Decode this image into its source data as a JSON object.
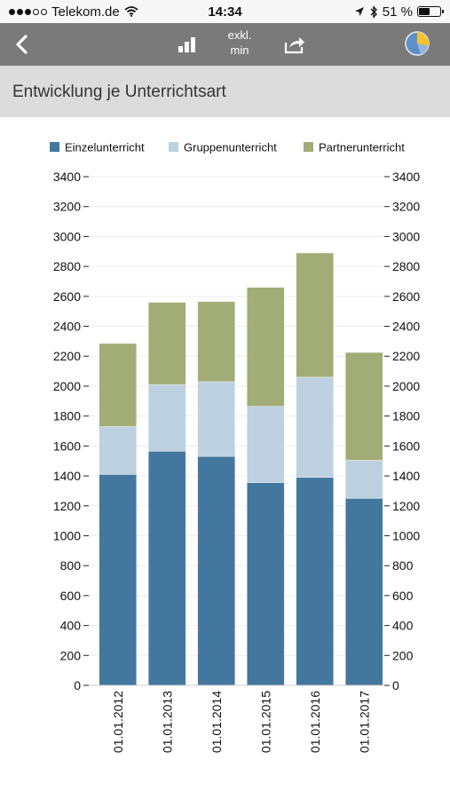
{
  "status_bar": {
    "carrier": "Telekom.de",
    "time": "14:34",
    "battery_text": "51 %",
    "battery_level": 0.51,
    "signal_strength": 3
  },
  "toolbar": {
    "back_icon": "chevron-left-icon",
    "chart_type_icon": "bar-chart-icon",
    "exkl_line1": "exkl.",
    "exkl_line2": "min",
    "share_icon": "share-icon",
    "pie_icon": "pie-chart-icon"
  },
  "page": {
    "title": "Entwicklung je Unterrichtsart"
  },
  "colors": {
    "einzel": "#43779e",
    "gruppen": "#bdd1e0",
    "partner": "#a2ac77",
    "toolbar": "#7a7a7a",
    "title_band": "#dcdcdc"
  },
  "chart_data": {
    "type": "bar",
    "stacked": true,
    "categories": [
      "01.01.2012",
      "01.01.2013",
      "01.01.2014",
      "01.01.2015",
      "01.01.2016",
      "01.01.2017"
    ],
    "series": [
      {
        "name": "Einzelunterricht",
        "values": [
          1410,
          1565,
          1530,
          1355,
          1390,
          1250
        ]
      },
      {
        "name": "Gruppenunterricht",
        "values": [
          320,
          445,
          500,
          510,
          670,
          255
        ]
      },
      {
        "name": "Partnerunterricht",
        "values": [
          555,
          550,
          535,
          795,
          830,
          720
        ]
      }
    ],
    "ylim": [
      0,
      3400
    ],
    "y_ticks": [
      "0",
      "200",
      "400",
      "600",
      "800",
      "1000",
      "1200",
      "1400",
      "1600",
      "1800",
      "2000",
      "2200",
      "2400",
      "2600",
      "2800",
      "3000",
      "3200",
      "3400"
    ],
    "y_axis_both_sides": true,
    "grid": true,
    "legend_position": "top"
  }
}
